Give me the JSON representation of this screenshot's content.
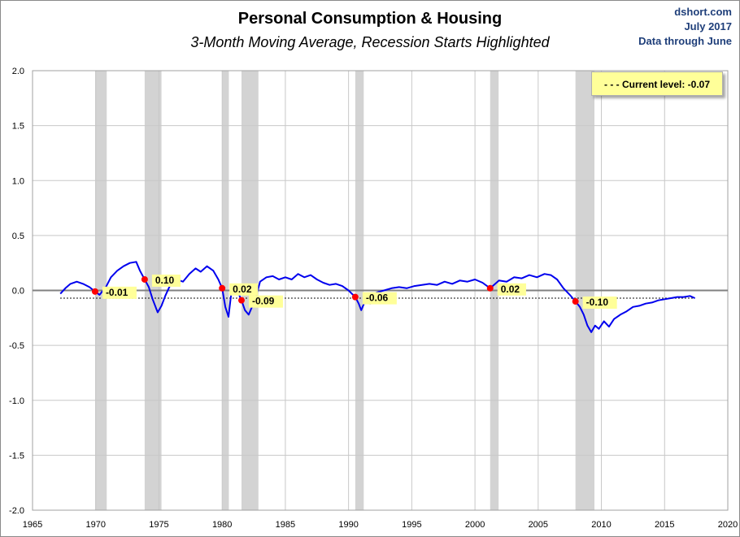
{
  "header": {
    "title": "Personal Consumption & Housing",
    "subtitle": "3-Month Moving Average, Recession Starts Highlighted",
    "credit_source": "dshort.com",
    "credit_date": "July 2017",
    "credit_through": "Data through June"
  },
  "legend": {
    "label": "- - -  Current level:  -0.07"
  },
  "chart_data": {
    "type": "line",
    "title": "Personal Consumption & Housing",
    "subtitle": "3-Month Moving Average, Recession Starts Highlighted",
    "xlabel": "",
    "ylabel": "",
    "xlim": [
      1965,
      2020
    ],
    "ylim": [
      -2.0,
      2.0
    ],
    "x_ticks": [
      "1965",
      "1970",
      "1975",
      "1980",
      "1985",
      "1990",
      "1995",
      "2000",
      "2005",
      "2010",
      "2015",
      "2020"
    ],
    "y_ticks": [
      "2.0",
      "1.5",
      "1.0",
      "0.5",
      "0.0",
      "-0.5",
      "-1.0",
      "-1.5",
      "-2.0"
    ],
    "grid": true,
    "legend_placement": "top-right",
    "colors": {
      "line": "#0000ee",
      "recession": "#d3d3d3",
      "marker": "#ff0000",
      "callout": "#ffff99",
      "zero_line": "#808080"
    },
    "current_level": -0.07,
    "recessions": [
      {
        "start": 1969.95,
        "end": 1970.87
      },
      {
        "start": 1973.87,
        "end": 1975.2
      },
      {
        "start": 1980.0,
        "end": 1980.53
      },
      {
        "start": 1981.53,
        "end": 1982.87
      },
      {
        "start": 1990.53,
        "end": 1991.2
      },
      {
        "start": 2001.2,
        "end": 2001.87
      },
      {
        "start": 2007.95,
        "end": 2009.45
      }
    ],
    "recession_start_values": [
      {
        "x": 1969.95,
        "y": -0.01,
        "label": "-0.01"
      },
      {
        "x": 1973.87,
        "y": 0.1,
        "label": "0.10"
      },
      {
        "x": 1980.0,
        "y": 0.02,
        "label": "0.02"
      },
      {
        "x": 1981.53,
        "y": -0.09,
        "label": "-0.09"
      },
      {
        "x": 1990.53,
        "y": -0.06,
        "label": "-0.06"
      },
      {
        "x": 2001.2,
        "y": 0.02,
        "label": "0.02"
      },
      {
        "x": 2007.95,
        "y": -0.1,
        "label": "-0.10"
      }
    ],
    "series": [
      {
        "x": [
          1967.2,
          1967.6,
          1968.0,
          1968.5,
          1969.0,
          1969.5,
          1969.95,
          1970.3,
          1970.8,
          1971.2,
          1971.7,
          1972.2,
          1972.7,
          1973.2,
          1973.5,
          1973.87,
          1974.2,
          1974.5,
          1974.9,
          1975.2,
          1975.5,
          1975.9,
          1976.4,
          1976.9,
          1977.4,
          1977.9,
          1978.3,
          1978.8,
          1979.3,
          1979.7,
          1980.0,
          1980.25,
          1980.5,
          1980.8,
          1981.2,
          1981.53,
          1981.8,
          1982.1,
          1982.4,
          1982.7,
          1983.0,
          1983.5,
          1984.0,
          1984.5,
          1985.0,
          1985.5,
          1986.0,
          1986.5,
          1987.0,
          1987.5,
          1988.0,
          1988.5,
          1989.0,
          1989.5,
          1990.0,
          1990.53,
          1990.8,
          1991.0,
          1991.3,
          1991.7,
          1992.2,
          1992.8,
          1993.4,
          1994.0,
          1994.6,
          1995.2,
          1995.8,
          1996.4,
          1997.0,
          1997.6,
          1998.2,
          1998.8,
          1999.4,
          2000.0,
          2000.6,
          2001.2,
          2001.5,
          2001.9,
          2002.5,
          2003.1,
          2003.7,
          2004.3,
          2004.9,
          2005.5,
          2006.0,
          2006.5,
          2007.0,
          2007.5,
          2007.95,
          2008.3,
          2008.6,
          2008.9,
          2009.2,
          2009.5,
          2009.8,
          2010.2,
          2010.6,
          2011.0,
          2011.5,
          2012.0,
          2012.5,
          2013.0,
          2013.5,
          2014.0,
          2014.5,
          2015.0,
          2015.5,
          2016.0,
          2016.5,
          2017.0,
          2017.4
        ],
        "y": [
          -0.03,
          0.02,
          0.06,
          0.08,
          0.06,
          0.03,
          -0.01,
          -0.04,
          0.03,
          0.12,
          0.18,
          0.22,
          0.25,
          0.26,
          0.18,
          0.1,
          0.03,
          -0.08,
          -0.2,
          -0.14,
          -0.05,
          0.05,
          0.1,
          0.08,
          0.15,
          0.2,
          0.17,
          0.22,
          0.18,
          0.1,
          0.02,
          -0.15,
          -0.24,
          0.05,
          0.0,
          -0.09,
          -0.18,
          -0.22,
          -0.14,
          -0.05,
          0.08,
          0.12,
          0.13,
          0.1,
          0.12,
          0.1,
          0.15,
          0.12,
          0.14,
          0.1,
          0.07,
          0.05,
          0.06,
          0.04,
          0.0,
          -0.06,
          -0.12,
          -0.18,
          -0.1,
          -0.12,
          -0.02,
          0.0,
          0.02,
          0.03,
          0.02,
          0.04,
          0.05,
          0.06,
          0.05,
          0.08,
          0.06,
          0.09,
          0.08,
          0.1,
          0.07,
          0.02,
          0.05,
          0.09,
          0.08,
          0.12,
          0.11,
          0.14,
          0.12,
          0.15,
          0.14,
          0.1,
          0.02,
          -0.04,
          -0.1,
          -0.15,
          -0.22,
          -0.32,
          -0.38,
          -0.32,
          -0.35,
          -0.28,
          -0.33,
          -0.26,
          -0.22,
          -0.19,
          -0.15,
          -0.14,
          -0.12,
          -0.11,
          -0.09,
          -0.08,
          -0.07,
          -0.06,
          -0.06,
          -0.05,
          -0.07
        ]
      }
    ]
  }
}
